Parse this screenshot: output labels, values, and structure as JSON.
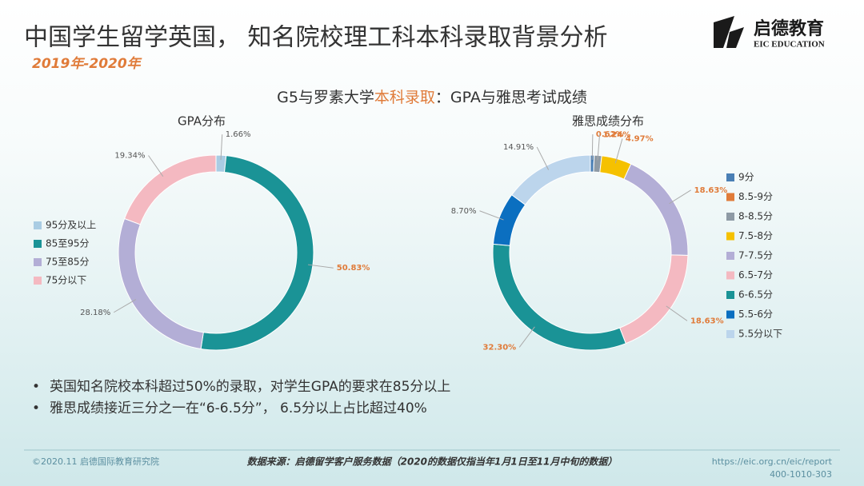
{
  "header": {
    "title": "中国学生留学英国， 知名院校理工科本科录取背景分析",
    "subtitle": "2019年-2020年",
    "logo_cn": "启德教育",
    "logo_en": "EIC EDUCATION"
  },
  "heading": [
    "G5与罗素大学",
    "本科录取",
    "：GPA与雅思考试成绩"
  ],
  "chart_data": [
    {
      "type": "pie",
      "donut": true,
      "title": "GPA分布",
      "categories": [
        "95分及以上",
        "85至95分",
        "75至85分",
        "75分以下"
      ],
      "values": [
        1.66,
        50.83,
        28.18,
        19.34
      ],
      "value_labels": [
        "1.66%",
        "50.83%",
        "28.18%",
        "19.34%"
      ],
      "colors": [
        "#a9cce3",
        "#1a9396",
        "#b3aed6",
        "#f4b9c1"
      ],
      "label_colors": [
        "#555555",
        "#e07b39",
        "#555555",
        "#555555"
      ],
      "legend": "left"
    },
    {
      "type": "pie",
      "donut": true,
      "title": "雅思成绩分布",
      "categories": [
        "9分",
        "8.5-9分",
        "8-8.5分",
        "7.5-8分",
        "7-7.5分",
        "6.5-7分",
        "6-6.5分",
        "5.5-6分",
        "5.5分以下"
      ],
      "values": [
        0.62,
        0,
        1.24,
        4.97,
        18.63,
        18.63,
        32.3,
        8.7,
        14.91
      ],
      "value_labels": [
        "0.62%",
        null,
        "1.24%",
        "4.97%",
        "18.63%",
        "18.63%",
        "32.30%",
        "8.70%",
        "14.91%"
      ],
      "colors": [
        "#4a7fb5",
        "#e07b39",
        "#8e9aa5",
        "#f5c100",
        "#b3aed6",
        "#f4b9c1",
        "#1a9396",
        "#0b6fc0",
        "#bcd5ec"
      ],
      "label_colors": [
        "#e07b39",
        "#e07b39",
        "#e07b39",
        "#e07b39",
        "#e07b39",
        "#e07b39",
        "#e07b39",
        "#555555",
        "#555555"
      ],
      "legend": "right"
    }
  ],
  "bullets": [
    "英国知名院校本科超过50%的录取，对学生GPA的要求在85分以上",
    "雅思成绩接近三分之一在“6-6.5分”， 6.5分以上占比超过40%"
  ],
  "footer": {
    "left": "©2020.11 启德国际教育研究院",
    "source": "数据来源：启德留学客户服务数据（2020的数据仅指当年1月1日至11月中旬的数据）",
    "url": "https://eic.org.cn/eic/report",
    "phone": "400-1010-303"
  }
}
